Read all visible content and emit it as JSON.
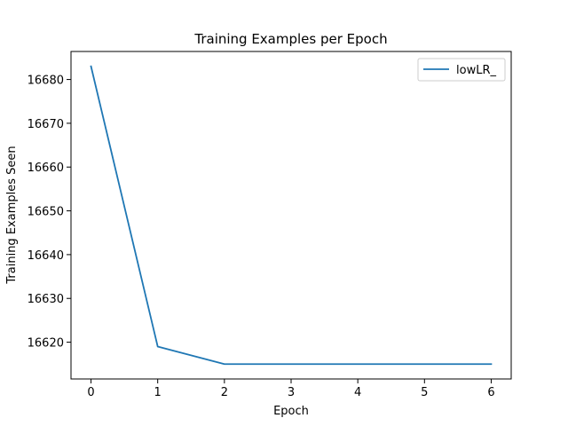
{
  "chart_data": {
    "type": "line",
    "title": "Training Examples per Epoch",
    "xlabel": "Epoch",
    "ylabel": "Training Examples Seen",
    "x": [
      0,
      1,
      2,
      3,
      4,
      5,
      6
    ],
    "series": [
      {
        "name": "lowLR_",
        "color": "#1f77b4",
        "values": [
          16683,
          16619,
          16615,
          16615,
          16615,
          16615,
          16615
        ]
      }
    ],
    "xlim": [
      -0.3,
      6.3
    ],
    "ylim": [
      16611.6,
      16686.4
    ],
    "xticks": [
      0,
      1,
      2,
      3,
      4,
      5,
      6
    ],
    "yticks": [
      16620,
      16630,
      16640,
      16650,
      16660,
      16670,
      16680
    ],
    "grid": false,
    "legend_position": "top-right"
  }
}
